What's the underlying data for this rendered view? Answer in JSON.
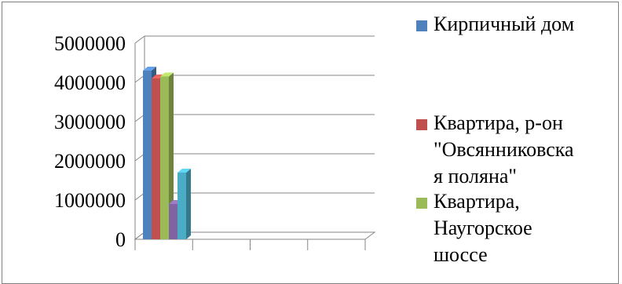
{
  "chart_data": {
    "type": "bar",
    "title": "",
    "xlabel": "",
    "ylabel": "",
    "ylim": [
      0,
      5000000
    ],
    "yticks": [
      0,
      1000000,
      2000000,
      3000000,
      4000000,
      5000000
    ],
    "ytick_labels": [
      "0",
      "1000000",
      "2000000",
      "3000000",
      "4000000",
      "5000000"
    ],
    "grid": true,
    "three_d": true,
    "legend_position": "right",
    "categories": [
      ""
    ],
    "series": [
      {
        "name": "Кирпичный дом",
        "values": [
          4300000
        ],
        "color": "#4f81bd"
      },
      {
        "name": "Квартира, р-он \"Овсянниковская поляна\"",
        "values": [
          4100000
        ],
        "color": "#c0504d"
      },
      {
        "name": "Квартира, Наугорское шоссе",
        "values": [
          4150000
        ],
        "color": "#9bbb59"
      },
      {
        "name": "",
        "values": [
          900000
        ],
        "color": "#8064a2"
      },
      {
        "name": "",
        "values": [
          1700000
        ],
        "color": "#4bacc6"
      }
    ],
    "legend": [
      {
        "label": "Кирпичный дом",
        "color": "#4f81bd"
      },
      {
        "label": "Квартира, р-он\n\"Овсянниковска\nя поляна\"",
        "color": "#c0504d"
      },
      {
        "label": "Квартира,\nНаугорское\nшоссе",
        "color": "#9bbb59"
      }
    ]
  }
}
